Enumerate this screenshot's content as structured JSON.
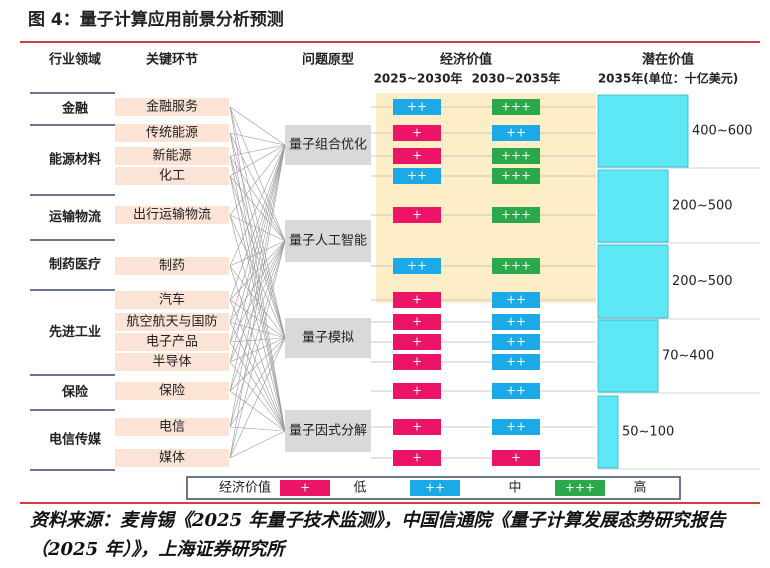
{
  "title": "图 4：量子计算应用前景分析预测",
  "headers": {
    "industry": "行业领域",
    "segment": "关键环节",
    "problem": "问题原型",
    "economic": "经济价值",
    "period1": "2025~2030年",
    "period2": "2030~2035年",
    "potential": "潜在价值",
    "potential_unit": "2035年(单位：十亿美元)"
  },
  "industries": [
    {
      "name": "金融",
      "segments": [
        {
          "label": "金融服务",
          "values": [
            "++",
            "+++"
          ]
        }
      ]
    },
    {
      "name": "能源材料",
      "segments": [
        {
          "label": "传统能源",
          "values": [
            "+",
            "++"
          ]
        },
        {
          "label": "新能源",
          "values": [
            "+",
            "+++"
          ]
        },
        {
          "label": "化工",
          "values": [
            "++",
            "+++"
          ]
        }
      ]
    },
    {
      "name": "运输物流",
      "segments": [
        {
          "label": "出行运输物流",
          "values": [
            "+",
            "+++"
          ]
        }
      ]
    },
    {
      "name": "制药医疗",
      "segments": [
        {
          "label": "制药",
          "values": [
            "++",
            "+++"
          ]
        }
      ]
    },
    {
      "name": "先进工业",
      "segments": [
        {
          "label": "汽车",
          "values": [
            "+",
            "++"
          ]
        },
        {
          "label": "航空航天与国防",
          "values": [
            "+",
            "++"
          ]
        },
        {
          "label": "电子产品",
          "values": [
            "+",
            "++"
          ]
        },
        {
          "label": "半导体",
          "values": [
            "+",
            "++"
          ]
        }
      ]
    },
    {
      "name": "保险",
      "segments": [
        {
          "label": "保险",
          "values": [
            "+",
            "++"
          ]
        }
      ]
    },
    {
      "name": "电信传媒",
      "segments": [
        {
          "label": "电信",
          "values": [
            "+",
            "++"
          ]
        },
        {
          "label": "媒体",
          "values": [
            "+",
            "+"
          ]
        }
      ]
    }
  ],
  "problems": [
    "量子组合优化",
    "量子人工智能",
    "量子模拟",
    "量子因式分解"
  ],
  "potential": [
    "400~600",
    "200~500",
    "200~500",
    "70~400",
    "50~100"
  ],
  "legend": {
    "title": "经济价值",
    "items": [
      {
        "symbol": "+",
        "label": "低",
        "color": "#ec1466"
      },
      {
        "symbol": "++",
        "label": "中",
        "color": "#1ba9e8"
      },
      {
        "symbol": "+++",
        "label": "高",
        "color": "#2aa84a"
      }
    ]
  },
  "source": "资料来源：麦肯锡《2025 年量子技术监测》，中国信通院《量子计算发展态势研究报告（2025 年）》，上海证券研究所"
}
